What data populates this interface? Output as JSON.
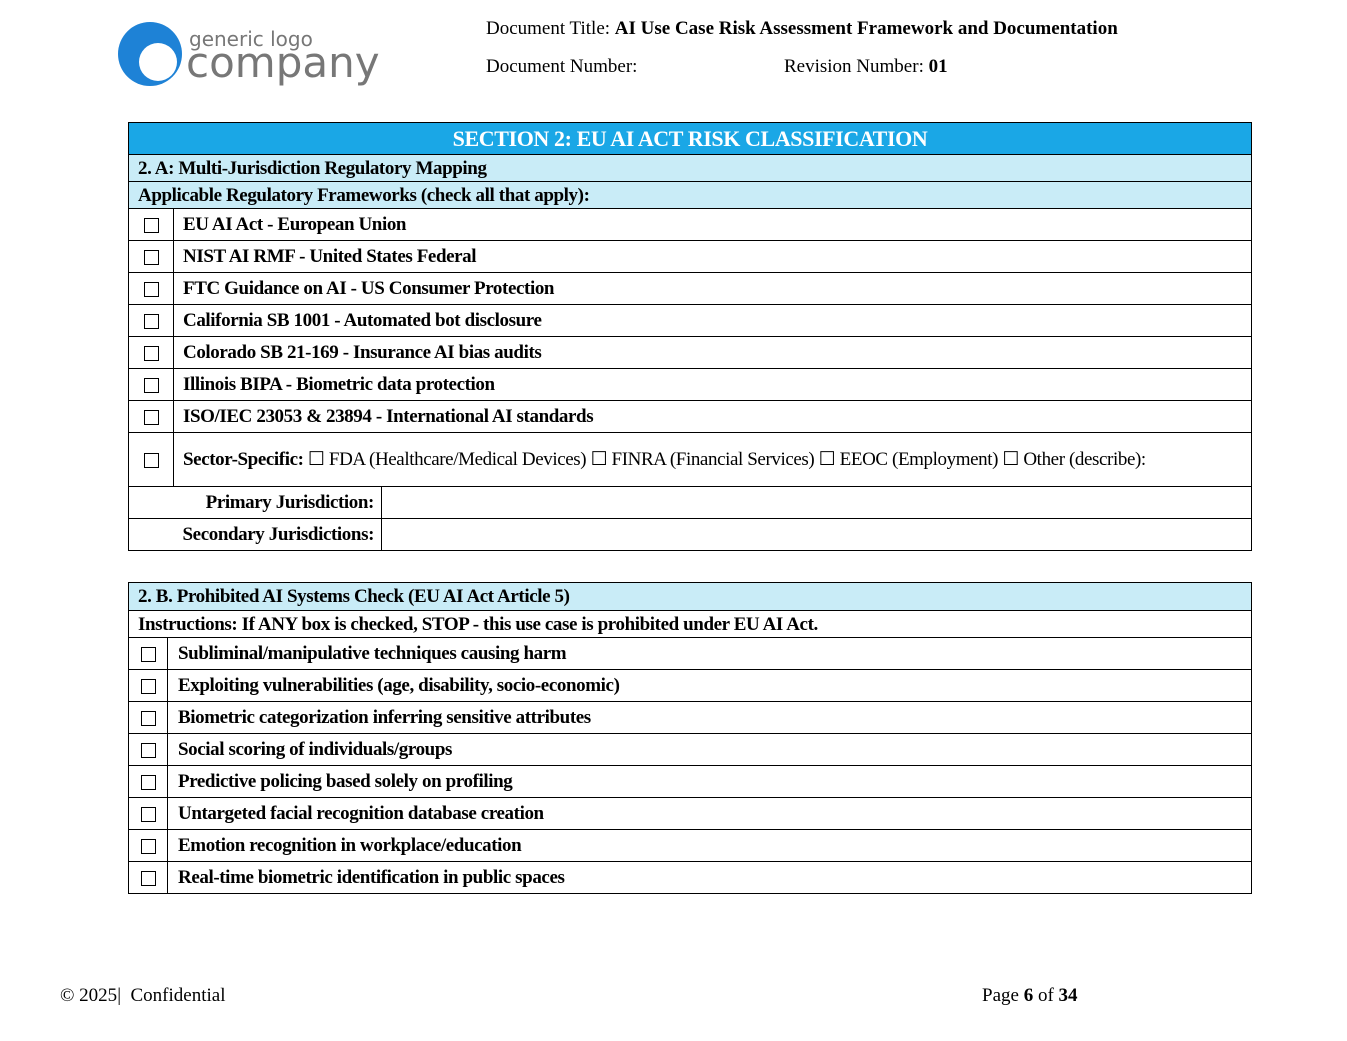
{
  "header": {
    "logo": {
      "line1": "generic logo",
      "line2": "company"
    },
    "document_title_label": "Document Title:",
    "document_title": "AI Use Case Risk Assessment Framework and Documentation",
    "document_number_label": "Document Number:",
    "revision_number_label": "Revision Number:",
    "revision_number": "01"
  },
  "section": {
    "title": "SECTION 2: EU AI ACT RISK CLASSIFICATION",
    "part_a": {
      "heading": "2. A: Multi-Jurisdiction Regulatory Mapping",
      "subheading": "Applicable Regulatory Frameworks (check all that apply):",
      "frameworks": [
        "EU AI Act - European Union",
        "NIST AI RMF - United States Federal",
        "FTC Guidance on AI - US Consumer Protection",
        "California SB 1001 - Automated bot disclosure",
        "Colorado SB 21-169 - Insurance AI bias audits",
        "Illinois BIPA - Biometric data protection",
        "ISO/IEC 23053 & 23894 - International AI standards"
      ],
      "sector_specific": {
        "label": "Sector-Specific:",
        "options": "☐ FDA (Healthcare/Medical Devices) ☐ FINRA (Financial Services) ☐ EEOC (Employment) ☐ Other (describe):"
      },
      "jurisdictions": [
        "Primary Jurisdiction:",
        "Secondary Jurisdictions:"
      ]
    },
    "part_b": {
      "heading": "2. B. Prohibited AI Systems Check (EU AI Act Article 5)",
      "instructions": "Instructions: If ANY box is checked, STOP - this use case is prohibited under EU AI Act.",
      "items": [
        "Subliminal/manipulative techniques causing harm",
        "Exploiting vulnerabilities (age, disability, socio-economic)",
        "Biometric categorization inferring sensitive attributes",
        "Social scoring of individuals/groups",
        "Predictive policing based solely on profiling",
        "Untargeted facial recognition database creation",
        "Emotion recognition in workplace/education",
        "Real-time biometric identification in public spaces"
      ]
    }
  },
  "footer": {
    "copyright": "© 2025",
    "separator": "|",
    "confidential": "Confidential",
    "page_label": "Page",
    "page_number": 6,
    "of_label": "of",
    "total_pages": 34
  }
}
